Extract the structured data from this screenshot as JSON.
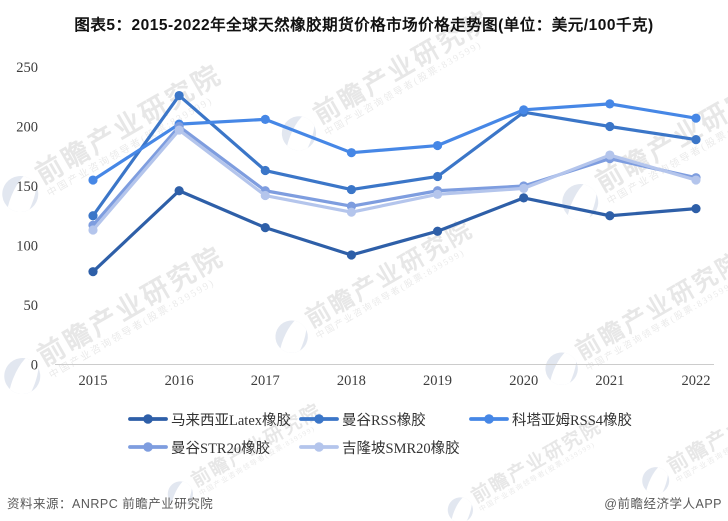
{
  "header": {
    "title": "图表5：2015-2022年全球天然橡胶期货价格市场价格走势图(单位：美元/100千克)"
  },
  "footer": {
    "source_label": "资料来源：ANRPC 前瞻产业研究院",
    "credit": "@前瞻经济学人APP"
  },
  "watermark": {
    "big_text": "前瞻产业研究院",
    "small_text": "中国产业咨询领导者(股票:839599)"
  },
  "chart_data": {
    "type": "line",
    "title": "图表5：2015-2022年全球天然橡胶期货价格市场价格走势图",
    "unit": "美元/100千克",
    "categories": [
      "2015",
      "2016",
      "2017",
      "2018",
      "2019",
      "2020",
      "2021",
      "2022"
    ],
    "ylim": [
      0,
      250
    ],
    "yticks": [
      0,
      50,
      100,
      150,
      200,
      250
    ],
    "grid": false,
    "legend_position": "bottom",
    "series": [
      {
        "id": "malaysia-latex",
        "name": "马来西亚Latex橡胶",
        "color": "#2E5FA8",
        "values": [
          78,
          146,
          115,
          92,
          112,
          140,
          125,
          131
        ]
      },
      {
        "id": "bangkok-rss",
        "name": "曼谷RSS橡胶",
        "color": "#3B76C8",
        "values": [
          125,
          226,
          163,
          147,
          158,
          212,
          200,
          189
        ]
      },
      {
        "id": "kottayam-rss4",
        "name": "科塔亚姆RSS4橡胶",
        "color": "#4687E6",
        "values": [
          155,
          202,
          206,
          178,
          184,
          214,
          219,
          207
        ]
      },
      {
        "id": "bangkok-str20",
        "name": "曼谷STR20橡胶",
        "color": "#7E9DDF",
        "values": [
          117,
          200,
          146,
          133,
          146,
          150,
          173,
          157
        ]
      },
      {
        "id": "kl-smr20",
        "name": "吉隆坡SMR20橡胶",
        "color": "#B4C5EC",
        "values": [
          113,
          197,
          142,
          128,
          143,
          148,
          176,
          155
        ]
      }
    ]
  }
}
